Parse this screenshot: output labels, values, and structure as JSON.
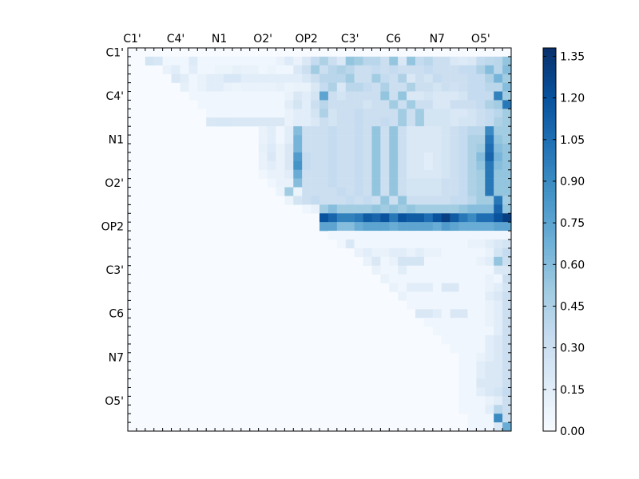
{
  "chart_data": {
    "type": "heatmap",
    "title": "",
    "xlabel": "",
    "ylabel": "",
    "n": 44,
    "labels": [
      "C1'",
      "C4'",
      "N1",
      "O2'",
      "OP2",
      "C3'",
      "C6",
      "N7",
      "O5'"
    ],
    "x_tick_labels": [
      "C1'",
      "C4'",
      "N1",
      "O2'",
      "OP2",
      "C3'",
      "C6",
      "N7",
      "O5'"
    ],
    "y_tick_labels": [
      "C1'",
      "C4'",
      "N1",
      "O2'",
      "OP2",
      "C3'",
      "C6",
      "N7",
      "O5'"
    ],
    "label_every": 5,
    "label_offset": 0.5,
    "colorbar": {
      "min": 0.0,
      "max": 1.38,
      "ticks": [
        "0.00",
        "0.15",
        "0.30",
        "0.45",
        "0.60",
        "0.75",
        "0.90",
        "1.05",
        "1.20",
        "1.35"
      ],
      "colormap": "Blues",
      "colors": [
        "#f7fbff",
        "#deebf7",
        "#c6dbef",
        "#9ecae1",
        "#6baed6",
        "#4292c6",
        "#2171b5",
        "#08519c",
        "#08306b"
      ]
    },
    "rows": [
      {
        "row": 1,
        "start": 2,
        "values": [
          0.25,
          0.22,
          0.05,
          0.05,
          0.05,
          0.18,
          0.05,
          0.05,
          0.05,
          0.05,
          0.05,
          0.05,
          0.05,
          0.05,
          0.05,
          0.1,
          0.18,
          0.1,
          0.2,
          0.35,
          0.45,
          0.3,
          0.2,
          0.55,
          0.5,
          0.4,
          0.4,
          0.3,
          0.55,
          0.2,
          0.55,
          0.35,
          0.4,
          0.3,
          0.3,
          0.2,
          0.18,
          0.2,
          0.35,
          0.38,
          0.4,
          0.55,
          0.6,
          0.6
        ]
      },
      {
        "row": 2,
        "start": 4,
        "values": [
          0.1,
          0.15,
          0.05,
          0.15,
          0.05,
          0.05,
          0.08,
          0.08,
          0.12,
          0.1,
          0.1,
          0.05,
          0.08,
          0.05,
          0.05,
          0.2,
          0.3,
          0.5,
          0.3,
          0.4,
          0.45,
          0.4,
          0.3,
          0.3,
          0.35,
          0.3,
          0.35,
          0.3,
          0.3,
          0.3,
          0.35,
          0.3,
          0.3,
          0.3,
          0.35,
          0.35,
          0.45,
          0.6,
          0.4,
          0.6
        ]
      },
      {
        "row": 3,
        "start": 5,
        "values": [
          0.2,
          0.15,
          0.05,
          0.1,
          0.15,
          0.15,
          0.22,
          0.22,
          0.15,
          0.15,
          0.15,
          0.15,
          0.15,
          0.15,
          0.15,
          0.22,
          0.3,
          0.4,
          0.4,
          0.4,
          0.5,
          0.3,
          0.3,
          0.5,
          0.35,
          0.3,
          0.45,
          0.2,
          0.3,
          0.25,
          0.35,
          0.3,
          0.3,
          0.3,
          0.35,
          0.35,
          0.45,
          0.65,
          0.5,
          0.55
        ]
      },
      {
        "row": 4,
        "start": 6,
        "values": [
          0.12,
          0.05,
          0.1,
          0.15,
          0.15,
          0.1,
          0.08,
          0.1,
          0.1,
          0.1,
          0.1,
          0.12,
          0.08,
          0.1,
          0.1,
          0.2,
          0.35,
          0.45,
          0.2,
          0.4,
          0.4,
          0.35,
          0.3,
          0.45,
          0.3,
          0.3,
          0.45,
          0.3,
          0.3,
          0.25,
          0.3,
          0.28,
          0.3,
          0.35,
          0.35,
          0.4,
          0.4,
          0.6,
          0.5,
          0.55
        ]
      },
      {
        "row": 5,
        "start": 7,
        "values": [
          0.05,
          0.05,
          0.05,
          0.05,
          0.05,
          0.05,
          0.05,
          0.05,
          0.05,
          0.05,
          0.05,
          0.1,
          0.2,
          0.15,
          0.25,
          0.75,
          0.3,
          0.25,
          0.3,
          0.3,
          0.3,
          0.3,
          0.55,
          0.3,
          0.55,
          0.2,
          0.2,
          0.25,
          0.2,
          0.2,
          0.2,
          0.25,
          0.35,
          0.35,
          0.35,
          0.95,
          0.5,
          0.55
        ]
      },
      {
        "row": 6,
        "start": 8,
        "values": [
          0.05,
          0.05,
          0.05,
          0.05,
          0.05,
          0.05,
          0.05,
          0.05,
          0.05,
          0.05,
          0.15,
          0.25,
          0.15,
          0.3,
          0.4,
          0.3,
          0.3,
          0.3,
          0.3,
          0.25,
          0.3,
          0.3,
          0.5,
          0.3,
          0.5,
          0.3,
          0.3,
          0.2,
          0.2,
          0.3,
          0.3,
          0.3,
          0.35,
          0.45,
          0.5,
          1.0,
          0.55,
          0.55
        ]
      },
      {
        "row": 7,
        "start": 9,
        "values": [
          0.05,
          0.05,
          0.05,
          0.05,
          0.05,
          0.05,
          0.05,
          0.05,
          0.05,
          0.1,
          0.15,
          0.15,
          0.25,
          0.45,
          0.25,
          0.3,
          0.3,
          0.35,
          0.3,
          0.3,
          0.3,
          0.3,
          0.5,
          0.3,
          0.5,
          0.25,
          0.25,
          0.25,
          0.2,
          0.2,
          0.25,
          0.3,
          0.35,
          0.4,
          0.5,
          1.0,
          0.55,
          0.5
        ]
      },
      {
        "row": 8,
        "start": 9,
        "values": [
          0.2,
          0.22,
          0.22,
          0.2,
          0.2,
          0.2,
          0.2,
          0.2,
          0.2,
          0.1,
          0.15,
          0.15,
          0.2,
          0.3,
          0.25,
          0.3,
          0.3,
          0.35,
          0.3,
          0.3,
          0.35,
          0.3,
          0.5,
          0.3,
          0.5,
          0.25,
          0.25,
          0.25,
          0.2,
          0.25,
          0.25,
          0.3,
          0.35,
          0.45,
          0.5,
          0.95,
          0.6,
          0.5
        ]
      },
      {
        "row": 9,
        "start": 15,
        "values": [
          0.1,
          0.15,
          0.05,
          0.15,
          0.6,
          0.3,
          0.3,
          0.3,
          0.35,
          0.3,
          0.3,
          0.35,
          0.3,
          0.55,
          0.3,
          0.55,
          0.3,
          0.2,
          0.2,
          0.2,
          0.2,
          0.25,
          0.3,
          0.35,
          0.4,
          0.4,
          0.9,
          0.5,
          0.5
        ]
      },
      {
        "row": 10,
        "start": 15,
        "values": [
          0.1,
          0.15,
          0.05,
          0.15,
          0.65,
          0.3,
          0.3,
          0.3,
          0.35,
          0.3,
          0.3,
          0.35,
          0.3,
          0.55,
          0.3,
          0.55,
          0.3,
          0.2,
          0.2,
          0.2,
          0.2,
          0.25,
          0.3,
          0.35,
          0.45,
          0.45,
          1.0,
          0.55,
          0.5
        ]
      },
      {
        "row": 11,
        "start": 15,
        "values": [
          0.12,
          0.18,
          0.1,
          0.2,
          0.65,
          0.3,
          0.3,
          0.3,
          0.35,
          0.3,
          0.3,
          0.35,
          0.3,
          0.55,
          0.3,
          0.55,
          0.3,
          0.2,
          0.2,
          0.2,
          0.2,
          0.25,
          0.3,
          0.35,
          0.45,
          0.5,
          1.05,
          0.6,
          0.55
        ]
      },
      {
        "row": 12,
        "start": 15,
        "values": [
          0.1,
          0.2,
          0.1,
          0.2,
          0.8,
          0.35,
          0.3,
          0.3,
          0.35,
          0.3,
          0.3,
          0.35,
          0.3,
          0.55,
          0.3,
          0.55,
          0.3,
          0.2,
          0.2,
          0.15,
          0.2,
          0.25,
          0.3,
          0.35,
          0.45,
          0.6,
          1.1,
          0.65,
          0.55
        ]
      },
      {
        "row": 13,
        "start": 15,
        "values": [
          0.1,
          0.15,
          0.1,
          0.2,
          0.85,
          0.35,
          0.3,
          0.3,
          0.35,
          0.3,
          0.3,
          0.35,
          0.3,
          0.55,
          0.3,
          0.55,
          0.3,
          0.2,
          0.2,
          0.15,
          0.2,
          0.25,
          0.3,
          0.35,
          0.45,
          0.55,
          1.0,
          0.6,
          0.55
        ]
      },
      {
        "row": 14,
        "start": 15,
        "values": [
          0.05,
          0.1,
          0.1,
          0.15,
          0.7,
          0.3,
          0.3,
          0.3,
          0.35,
          0.3,
          0.3,
          0.35,
          0.3,
          0.55,
          0.3,
          0.55,
          0.3,
          0.2,
          0.2,
          0.2,
          0.2,
          0.25,
          0.3,
          0.35,
          0.45,
          0.5,
          1.0,
          0.55,
          0.55
        ]
      },
      {
        "row": 15,
        "start": 16,
        "values": [
          0.05,
          0.1,
          0.1,
          0.6,
          0.3,
          0.3,
          0.3,
          0.35,
          0.3,
          0.3,
          0.35,
          0.3,
          0.55,
          0.3,
          0.55,
          0.3,
          0.25,
          0.25,
          0.25,
          0.25,
          0.3,
          0.3,
          0.35,
          0.45,
          0.5,
          1.0,
          0.55,
          0.55
        ]
      },
      {
        "row": 16,
        "start": 17,
        "values": [
          0.08,
          0.5,
          0.08,
          0.3,
          0.3,
          0.3,
          0.3,
          0.35,
          0.3,
          0.35,
          0.3,
          0.55,
          0.3,
          0.55,
          0.3,
          0.25,
          0.25,
          0.25,
          0.25,
          0.3,
          0.3,
          0.35,
          0.45,
          0.5,
          1.0,
          0.55,
          0.55
        ]
      },
      {
        "row": 17,
        "start": 18,
        "values": [
          0.08,
          0.25,
          0.3,
          0.35,
          0.3,
          0.3,
          0.3,
          0.35,
          0.3,
          0.35,
          0.3,
          0.55,
          0.3,
          0.55,
          0.3,
          0.3,
          0.3,
          0.3,
          0.3,
          0.35,
          0.35,
          0.4,
          0.5,
          0.5,
          1.0,
          0.5,
          0.5
        ]
      },
      {
        "row": 18,
        "start": 20,
        "values": [
          0.05,
          0.1,
          0.5,
          0.6,
          0.5,
          0.5,
          0.5,
          0.5,
          0.55,
          0.5,
          0.55,
          0.5,
          0.55,
          0.5,
          0.5,
          0.5,
          0.5,
          0.5,
          0.55,
          0.6,
          0.6,
          0.6,
          1.1,
          0.55,
          0.55
        ]
      },
      {
        "row": 19,
        "start": 22,
        "values": [
          1.2,
          1.1,
          0.95,
          0.95,
          1.0,
          1.15,
          1.1,
          1.2,
          1.0,
          1.2,
          1.15,
          1.15,
          1.05,
          1.2,
          1.3,
          1.15,
          1.0,
          0.9,
          1.05,
          1.05,
          1.2,
          1.3,
          1.2,
          0.55,
          0.8
        ]
      },
      {
        "row": 20,
        "start": 22,
        "values": [
          0.75,
          0.75,
          0.6,
          0.6,
          0.7,
          0.75,
          0.75,
          0.75,
          0.7,
          0.75,
          0.75,
          0.75,
          0.75,
          0.7,
          0.8,
          0.75,
          0.7,
          0.7,
          0.7,
          0.7,
          0.75,
          0.75,
          0.8,
          0.4,
          0.5
        ]
      },
      {
        "row": 21,
        "start": 23,
        "values": [
          0.05,
          0.05,
          0.05,
          0.05,
          0.05,
          0.05,
          0.05,
          0.05,
          0.05,
          0.05,
          0.05,
          0.05,
          0.05,
          0.05,
          0.05,
          0.05,
          0.05,
          0.05,
          0.05,
          0.05,
          0.05,
          0.25,
          0.5
        ]
      },
      {
        "row": 22,
        "start": 24,
        "values": [
          0.05,
          0.2,
          0.05,
          0.05,
          0.05,
          0.05,
          0.05,
          0.05,
          0.05,
          0.05,
          0.05,
          0.05,
          0.05,
          0.05,
          0.05,
          0.1,
          0.1,
          0.15,
          0.2,
          0.25,
          0.3,
          0.6
        ]
      },
      {
        "row": 23,
        "start": 26,
        "values": [
          0.1,
          0.15,
          0.1,
          0.1,
          0.15,
          0.15,
          0.1,
          0.15,
          0.1,
          0.1,
          0.05,
          0.05,
          0.05,
          0.05,
          0.05,
          0.1,
          0.25,
          0.35,
          0.2,
          0.45
        ]
      },
      {
        "row": 24,
        "start": 27,
        "values": [
          0.1,
          0.2,
          0.05,
          0.1,
          0.25,
          0.25,
          0.25,
          0.05,
          0.05,
          0.05,
          0.05,
          0.05,
          0.05,
          0.1,
          0.15,
          0.55,
          0.3,
          0.45
        ]
      },
      {
        "row": 25,
        "start": 28,
        "values": [
          0.1,
          0.05,
          0.05,
          0.15,
          0.05,
          0.05,
          0.05,
          0.05,
          0.05,
          0.05,
          0.05,
          0.05,
          0.05,
          0.05,
          0.2,
          0.2,
          0.35
        ]
      },
      {
        "row": 26,
        "start": 29,
        "values": [
          0.1,
          0.05,
          0.05,
          0.05,
          0.05,
          0.05,
          0.05,
          0.05,
          0.05,
          0.05,
          0.05,
          0.05,
          0.1,
          0.05,
          0.3,
          0.6
        ]
      },
      {
        "row": 27,
        "start": 30,
        "values": [
          0.1,
          0.05,
          0.15,
          0.15,
          0.15,
          0.05,
          0.2,
          0.2,
          0.05,
          0.05,
          0.05,
          0.1,
          0.15,
          0.25,
          0.45
        ]
      },
      {
        "row": 28,
        "start": 31,
        "values": [
          0.1,
          0.05,
          0.05,
          0.05,
          0.05,
          0.05,
          0.05,
          0.05,
          0.05,
          0.05,
          0.15,
          0.2,
          0.3,
          0.55
        ]
      },
      {
        "row": 29,
        "start": 32,
        "values": [
          0.05,
          0.05,
          0.05,
          0.05,
          0.05,
          0.05,
          0.05,
          0.05,
          0.05,
          0.1,
          0.15,
          0.3,
          0.45
        ]
      },
      {
        "row": 30,
        "start": 33,
        "values": [
          0.2,
          0.2,
          0.15,
          0.05,
          0.2,
          0.2,
          0.05,
          0.05,
          0.1,
          0.15,
          0.3,
          0.55
        ]
      },
      {
        "row": 31,
        "start": 34,
        "values": [
          0.05,
          0.05,
          0.05,
          0.05,
          0.05,
          0.05,
          0.05,
          0.1,
          0.15,
          0.3,
          0.45
        ]
      },
      {
        "row": 32,
        "start": 35,
        "values": [
          0.05,
          0.05,
          0.05,
          0.05,
          0.05,
          0.05,
          0.05,
          0.15,
          0.3,
          0.55
        ]
      },
      {
        "row": 33,
        "start": 36,
        "values": [
          0.05,
          0.05,
          0.05,
          0.05,
          0.05,
          0.15,
          0.2,
          0.3,
          0.6
        ]
      },
      {
        "row": 34,
        "start": 37,
        "values": [
          0.05,
          0.05,
          0.05,
          0.05,
          0.15,
          0.2,
          0.3,
          0.6
        ]
      },
      {
        "row": 35,
        "start": 38,
        "values": [
          0.05,
          0.05,
          0.1,
          0.15,
          0.2,
          0.3,
          0.6
        ]
      },
      {
        "row": 36,
        "start": 38,
        "values": [
          0.05,
          0.05,
          0.15,
          0.2,
          0.2,
          0.3,
          0.6
        ]
      },
      {
        "row": 37,
        "start": 38,
        "values": [
          0.05,
          0.05,
          0.15,
          0.2,
          0.2,
          0.3,
          0.6
        ]
      },
      {
        "row": 38,
        "start": 38,
        "values": [
          0.05,
          0.05,
          0.2,
          0.2,
          0.2,
          0.3,
          0.6
        ]
      },
      {
        "row": 39,
        "start": 38,
        "values": [
          0.05,
          0.05,
          0.15,
          0.2,
          0.25,
          0.35,
          0.6
        ]
      },
      {
        "row": 40,
        "start": 38,
        "values": [
          0.05,
          0.05,
          0.05,
          0.1,
          0.15,
          0.3,
          0.6
        ]
      },
      {
        "row": 41,
        "start": 38,
        "values": [
          0.05,
          0.05,
          0.05,
          0.15,
          0.4,
          0.3,
          0.35
        ]
      },
      {
        "row": 42,
        "start": 39,
        "values": [
          0.05,
          0.05,
          0.05,
          0.9,
          0.3,
          0.45
        ]
      },
      {
        "row": 43,
        "start": 39,
        "values": [
          0.05,
          0.05,
          0.05,
          0.2,
          0.7,
          0.3
        ]
      }
    ]
  }
}
